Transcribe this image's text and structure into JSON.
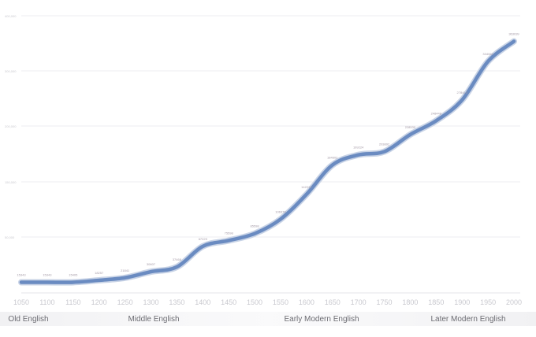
{
  "chart_data": {
    "type": "line",
    "title": "",
    "xlabel": "",
    "ylabel": "",
    "x": [
      1050,
      1100,
      1150,
      1200,
      1250,
      1300,
      1350,
      1400,
      1450,
      1500,
      1550,
      1600,
      1650,
      1700,
      1750,
      1800,
      1850,
      1900,
      1950,
      2000
    ],
    "x_ticks": [
      "1050",
      "1100",
      "1150",
      "1200",
      "1250",
      "1300",
      "1350",
      "1400",
      "1450",
      "1500",
      "1550",
      "1600",
      "1650",
      "1700",
      "1750",
      "1800",
      "1850",
      "1900",
      "1950",
      "2000"
    ],
    "ylim": [
      0,
      400000
    ],
    "y_ticks": [
      "400,000",
      "300,000",
      "200,000",
      "150,000",
      "50,000"
    ],
    "y_tick_values": [
      400000,
      300000,
      200000,
      150000,
      50000
    ],
    "grid": true,
    "series": [
      {
        "values": [
          15343,
          15343,
          15405,
          18257,
          21841,
          30607,
          37468,
          67229,
          75598,
          85598,
          106378,
          142212,
          184602,
          199224,
          203892,
          228530,
          248448,
          278413,
          334064,
          363039
        ],
        "labels": [
          "15343",
          "15343",
          "15405",
          "18257",
          "21841",
          "30607",
          "37468",
          "67229",
          "75598",
          "85598",
          "106378",
          "142212",
          "184602",
          "199224",
          "203892",
          "228530",
          "248448",
          "278413",
          "334064",
          "363039"
        ],
        "color": "#6a8bc1"
      }
    ],
    "eras": [
      "Old English",
      "Middle English",
      "Early Modern English",
      "Later Modern English"
    ]
  }
}
